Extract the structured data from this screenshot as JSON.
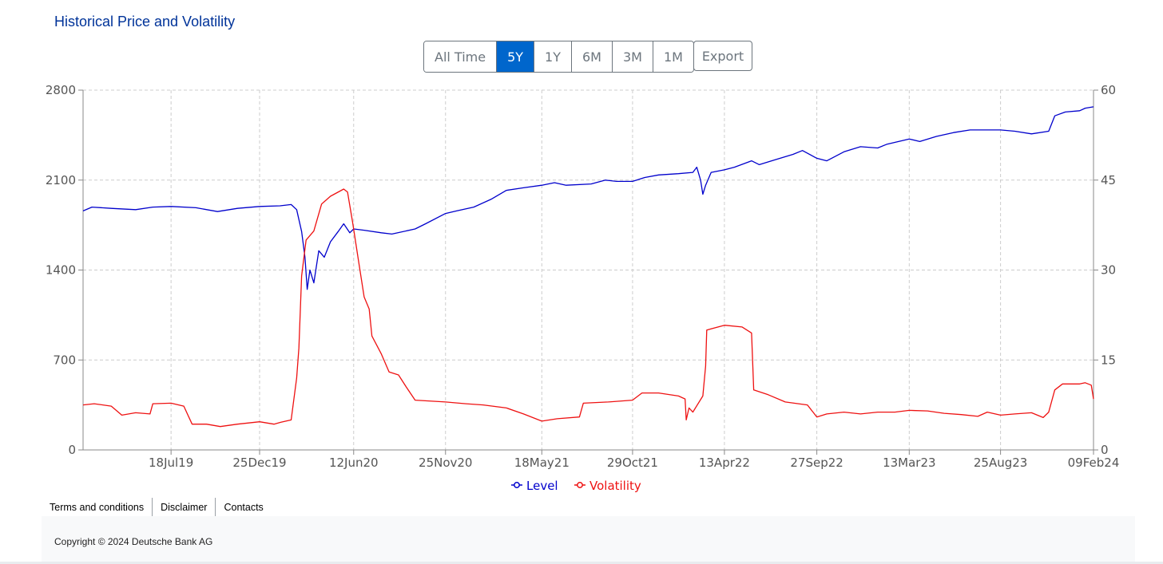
{
  "header": {
    "title": "Historical Price and Volatility"
  },
  "toolbar": {
    "ranges": [
      "All Time",
      "5Y",
      "1Y",
      "6M",
      "3M",
      "1M"
    ],
    "active_range": "5Y",
    "export_label": "Export"
  },
  "colors": {
    "level": "#0000cc",
    "volatility": "#ee1111",
    "accent": "#0066cc",
    "title": "#003399"
  },
  "chart_data": {
    "type": "line",
    "x_ticks": [
      "18Jul19",
      "25Dec19",
      "12Jun20",
      "25Nov20",
      "18May21",
      "29Oct21",
      "13Apr22",
      "27Sep22",
      "13Mar23",
      "25Aug23",
      "09Feb24"
    ],
    "x_range": [
      "2019-02-09",
      "2024-02-09"
    ],
    "y_left": {
      "ticks": [
        0,
        700,
        1400,
        2100,
        2800
      ],
      "range": [
        0,
        2800
      ]
    },
    "y_right": {
      "ticks": [
        0,
        15,
        30,
        45,
        60
      ],
      "range": [
        0,
        60
      ]
    },
    "grid": true,
    "legend_position": "bottom-center",
    "series": [
      {
        "name": "Level",
        "axis": "left",
        "points": [
          [
            "2019-02-09",
            1860
          ],
          [
            "2019-02-25",
            1890
          ],
          [
            "2019-04-01",
            1880
          ],
          [
            "2019-05-15",
            1870
          ],
          [
            "2019-06-15",
            1890
          ],
          [
            "2019-07-18",
            1895
          ],
          [
            "2019-09-01",
            1885
          ],
          [
            "2019-10-10",
            1855
          ],
          [
            "2019-11-15",
            1880
          ],
          [
            "2019-12-25",
            1895
          ],
          [
            "2020-01-31",
            1900
          ],
          [
            "2020-02-20",
            1910
          ],
          [
            "2020-03-01",
            1870
          ],
          [
            "2020-03-10",
            1700
          ],
          [
            "2020-03-16",
            1500
          ],
          [
            "2020-03-20",
            1250
          ],
          [
            "2020-03-25",
            1400
          ],
          [
            "2020-04-01",
            1300
          ],
          [
            "2020-04-10",
            1550
          ],
          [
            "2020-04-20",
            1500
          ],
          [
            "2020-05-01",
            1620
          ],
          [
            "2020-05-15",
            1700
          ],
          [
            "2020-05-25",
            1760
          ],
          [
            "2020-06-05",
            1690
          ],
          [
            "2020-06-12",
            1720
          ],
          [
            "2020-07-01",
            1710
          ],
          [
            "2020-08-01",
            1690
          ],
          [
            "2020-08-20",
            1680
          ],
          [
            "2020-10-01",
            1720
          ],
          [
            "2020-10-20",
            1760
          ],
          [
            "2020-11-25",
            1840
          ],
          [
            "2020-12-15",
            1860
          ],
          [
            "2021-01-15",
            1890
          ],
          [
            "2021-02-15",
            1950
          ],
          [
            "2021-03-15",
            2020
          ],
          [
            "2021-04-15",
            2040
          ],
          [
            "2021-05-18",
            2060
          ],
          [
            "2021-06-10",
            2080
          ],
          [
            "2021-07-01",
            2060
          ],
          [
            "2021-08-15",
            2070
          ],
          [
            "2021-09-10",
            2100
          ],
          [
            "2021-09-30",
            2090
          ],
          [
            "2021-10-29",
            2090
          ],
          [
            "2021-11-20",
            2120
          ],
          [
            "2021-12-15",
            2140
          ],
          [
            "2022-01-20",
            2150
          ],
          [
            "2022-02-15",
            2160
          ],
          [
            "2022-02-22",
            2200
          ],
          [
            "2022-03-01",
            2100
          ],
          [
            "2022-03-05",
            1990
          ],
          [
            "2022-03-10",
            2060
          ],
          [
            "2022-03-20",
            2160
          ],
          [
            "2022-04-13",
            2180
          ],
          [
            "2022-05-01",
            2200
          ],
          [
            "2022-06-01",
            2250
          ],
          [
            "2022-06-15",
            2220
          ],
          [
            "2022-07-15",
            2260
          ],
          [
            "2022-08-15",
            2300
          ],
          [
            "2022-09-01",
            2330
          ],
          [
            "2022-09-27",
            2270
          ],
          [
            "2022-10-15",
            2250
          ],
          [
            "2022-11-15",
            2320
          ],
          [
            "2022-12-15",
            2360
          ],
          [
            "2023-01-15",
            2350
          ],
          [
            "2023-02-01",
            2380
          ],
          [
            "2023-03-13",
            2420
          ],
          [
            "2023-04-01",
            2400
          ],
          [
            "2023-05-01",
            2440
          ],
          [
            "2023-06-01",
            2470
          ],
          [
            "2023-07-01",
            2490
          ],
          [
            "2023-08-25",
            2490
          ],
          [
            "2023-09-20",
            2480
          ],
          [
            "2023-10-20",
            2460
          ],
          [
            "2023-11-20",
            2480
          ],
          [
            "2023-12-01",
            2600
          ],
          [
            "2023-12-20",
            2630
          ],
          [
            "2024-01-15",
            2640
          ],
          [
            "2024-01-25",
            2660
          ],
          [
            "2024-02-09",
            2670
          ]
        ]
      },
      {
        "name": "Volatility",
        "axis": "right",
        "points": [
          [
            "2019-02-09",
            7.5
          ],
          [
            "2019-03-01",
            7.7
          ],
          [
            "2019-04-01",
            7.3
          ],
          [
            "2019-04-20",
            5.8
          ],
          [
            "2019-05-15",
            6.2
          ],
          [
            "2019-06-10",
            6.0
          ],
          [
            "2019-06-15",
            7.7
          ],
          [
            "2019-07-18",
            7.8
          ],
          [
            "2019-08-10",
            7.3
          ],
          [
            "2019-08-25",
            4.3
          ],
          [
            "2019-09-20",
            4.3
          ],
          [
            "2019-10-15",
            3.9
          ],
          [
            "2019-11-15",
            4.3
          ],
          [
            "2019-12-25",
            4.7
          ],
          [
            "2020-01-20",
            4.3
          ],
          [
            "2020-02-01",
            4.6
          ],
          [
            "2020-02-20",
            5.0
          ],
          [
            "2020-03-01",
            12.0
          ],
          [
            "2020-03-05",
            17.0
          ],
          [
            "2020-03-10",
            29.0
          ],
          [
            "2020-03-18",
            35.0
          ],
          [
            "2020-04-01",
            36.5
          ],
          [
            "2020-04-15",
            41.0
          ],
          [
            "2020-05-01",
            42.3
          ],
          [
            "2020-05-25",
            43.5
          ],
          [
            "2020-06-01",
            43.0
          ],
          [
            "2020-06-10",
            38.0
          ],
          [
            "2020-06-20",
            32.0
          ],
          [
            "2020-07-01",
            25.5
          ],
          [
            "2020-07-10",
            23.5
          ],
          [
            "2020-07-15",
            19.0
          ],
          [
            "2020-08-01",
            16.0
          ],
          [
            "2020-08-15",
            13.0
          ],
          [
            "2020-09-01",
            12.5
          ],
          [
            "2020-09-15",
            10.5
          ],
          [
            "2020-10-01",
            8.3
          ],
          [
            "2020-11-25",
            8.0
          ],
          [
            "2021-01-01",
            7.7
          ],
          [
            "2021-02-01",
            7.5
          ],
          [
            "2021-03-15",
            7.0
          ],
          [
            "2021-04-15",
            6.0
          ],
          [
            "2021-05-18",
            4.8
          ],
          [
            "2021-06-15",
            5.2
          ],
          [
            "2021-07-25",
            5.5
          ],
          [
            "2021-08-01",
            7.8
          ],
          [
            "2021-09-15",
            8.0
          ],
          [
            "2021-10-29",
            8.3
          ],
          [
            "2021-11-15",
            9.5
          ],
          [
            "2021-12-15",
            9.5
          ],
          [
            "2022-01-20",
            9.0
          ],
          [
            "2022-02-01",
            8.5
          ],
          [
            "2022-02-03",
            5.0
          ],
          [
            "2022-02-08",
            7.0
          ],
          [
            "2022-02-15",
            6.3
          ],
          [
            "2022-03-05",
            9.0
          ],
          [
            "2022-03-10",
            14.0
          ],
          [
            "2022-03-12",
            20.0
          ],
          [
            "2022-04-13",
            20.8
          ],
          [
            "2022-05-15",
            20.5
          ],
          [
            "2022-06-01",
            19.5
          ],
          [
            "2022-06-05",
            10.0
          ],
          [
            "2022-07-01",
            9.2
          ],
          [
            "2022-08-01",
            8.0
          ],
          [
            "2022-09-10",
            7.5
          ],
          [
            "2022-09-27",
            5.5
          ],
          [
            "2022-10-15",
            6.0
          ],
          [
            "2022-11-15",
            6.3
          ],
          [
            "2022-12-15",
            6.0
          ],
          [
            "2023-01-15",
            6.3
          ],
          [
            "2023-02-15",
            6.3
          ],
          [
            "2023-03-13",
            6.6
          ],
          [
            "2023-04-15",
            6.5
          ],
          [
            "2023-05-15",
            6.1
          ],
          [
            "2023-06-15",
            5.9
          ],
          [
            "2023-07-15",
            5.6
          ],
          [
            "2023-08-01",
            6.3
          ],
          [
            "2023-08-25",
            5.8
          ],
          [
            "2023-09-20",
            6.0
          ],
          [
            "2023-10-20",
            6.2
          ],
          [
            "2023-11-10",
            5.4
          ],
          [
            "2023-11-20",
            6.3
          ],
          [
            "2023-12-01",
            10.0
          ],
          [
            "2023-12-15",
            11.0
          ],
          [
            "2024-01-15",
            11.0
          ],
          [
            "2024-01-25",
            11.2
          ],
          [
            "2024-02-05",
            10.8
          ],
          [
            "2024-02-09",
            8.5
          ]
        ]
      }
    ]
  },
  "footer": {
    "links": [
      "Terms and conditions",
      "Disclaimer",
      "Contacts"
    ],
    "copyright": "Copyright © 2024 Deutsche Bank AG"
  }
}
